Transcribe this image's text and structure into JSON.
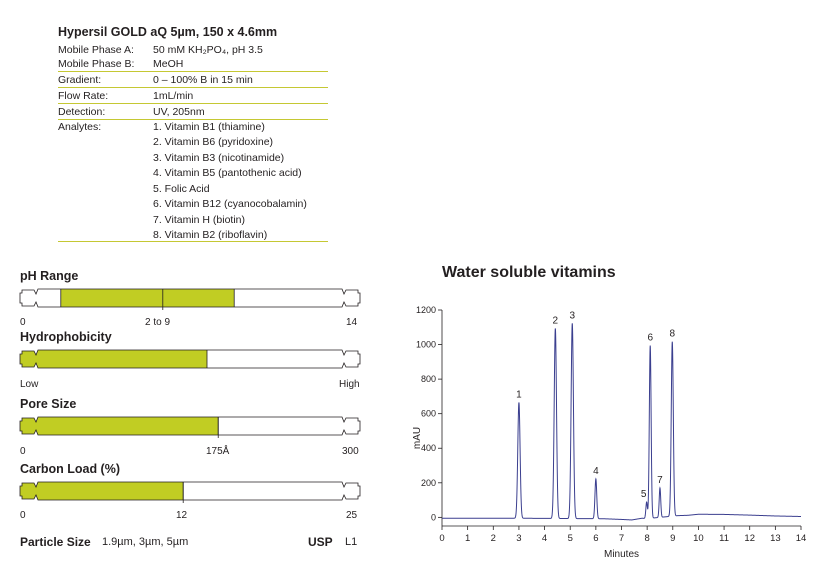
{
  "column": {
    "title": "Hypersil GOLD aQ 5µm, 150 x 4.6mm"
  },
  "conditions": [
    {
      "label": "Mobile Phase A:",
      "value": "50 mM KH₂PO₄, pH 3.5"
    },
    {
      "label": "Mobile Phase B:",
      "value": "MeOH"
    },
    {
      "label": "Gradient:",
      "value": "0 – 100% B in 15 min"
    },
    {
      "label": "Flow Rate:",
      "value": "1mL/min"
    },
    {
      "label": "Detection:",
      "value": "UV, 205nm"
    },
    {
      "label": "Analytes:",
      "value": "1. Vitamin B1 (thiamine)"
    }
  ],
  "analytes_more": [
    "2. Vitamin B6 (pyridoxine)",
    "3. Vitamin B3 (nicotinamide)",
    "4. Vitamin B5 (pantothenic acid)",
    "5. Folic Acid",
    "6. Vitamin B12 (cyanocobalamin)",
    "7. Vitamin H (biotin)",
    "8. Vitamin B2 (riboflavin)"
  ],
  "gauges": {
    "ph": {
      "title": "pH Range",
      "min": "0",
      "max": "14",
      "mid": "2 to 9",
      "fill_start": 0.12,
      "fill_end": 0.63,
      "marker": 0.42,
      "color": "#c1cd23"
    },
    "hydrophobicity": {
      "title": "Hydrophobicity",
      "min": "Low",
      "max": "High",
      "fill_start": 0,
      "fill_end": 0.55,
      "color": "#c1cd23"
    },
    "pore": {
      "title": "Pore Size",
      "min": "0",
      "max": "300",
      "mid": "175Å",
      "fill_start": 0,
      "fill_end": 0.583,
      "marker": 0.583,
      "color": "#c1cd23"
    },
    "carbon": {
      "title": "Carbon Load (%)",
      "min": "0",
      "max": "25",
      "mid": "12",
      "fill_start": 0,
      "fill_end": 0.48,
      "marker": 0.48,
      "color": "#c1cd23"
    }
  },
  "footer": {
    "particle_label": "Particle Size",
    "particle_value": "1.9µm, 3µm, 5µm",
    "usp_label": "USP",
    "usp_value": "L1"
  },
  "chart_data": {
    "type": "line",
    "title": "Water soluble vitamins",
    "xlabel": "Minutes",
    "ylabel": "mAU",
    "xlim": [
      0,
      14
    ],
    "ylim": [
      -50,
      1200
    ],
    "x_ticks": [
      "0",
      "1",
      "2",
      "3",
      "4",
      "5",
      "6",
      "7",
      "8",
      "9",
      "10",
      "11",
      "12",
      "13",
      "14"
    ],
    "y_ticks": [
      "0",
      "200",
      "400",
      "600",
      "800",
      "1000",
      "1200"
    ],
    "line_color": "#3b3f8f",
    "baseline": [
      [
        0,
        -5
      ],
      [
        3,
        -5
      ],
      [
        5,
        -7
      ],
      [
        6.3,
        -8
      ],
      [
        7,
        -12
      ],
      [
        7.4,
        -15
      ],
      [
        7.8,
        -5
      ],
      [
        8,
        -7
      ],
      [
        9.2,
        10
      ],
      [
        9.6,
        12
      ],
      [
        10,
        18
      ],
      [
        11,
        17
      ],
      [
        12,
        13
      ],
      [
        13,
        8
      ],
      [
        14,
        5
      ]
    ],
    "peaks": [
      {
        "label": "1",
        "rt": 3.0,
        "height": 670,
        "width": 0.045
      },
      {
        "label": "2",
        "rt": 4.42,
        "height": 1100,
        "width": 0.045
      },
      {
        "label": "3",
        "rt": 5.08,
        "height": 1130,
        "width": 0.045
      },
      {
        "label": "4",
        "rt": 6.0,
        "height": 230,
        "width": 0.035
      },
      {
        "label": "5",
        "rt": 7.98,
        "height": 95,
        "width": 0.03
      },
      {
        "label": "6",
        "rt": 8.12,
        "height": 1000,
        "width": 0.035
      },
      {
        "label": "7",
        "rt": 8.5,
        "height": 170,
        "width": 0.03
      },
      {
        "label": "8",
        "rt": 8.98,
        "height": 1010,
        "width": 0.04
      }
    ]
  }
}
